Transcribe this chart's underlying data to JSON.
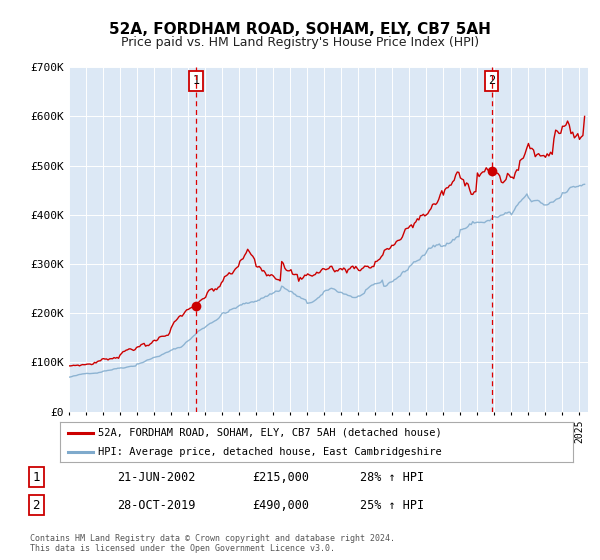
{
  "title": "52A, FORDHAM ROAD, SOHAM, ELY, CB7 5AH",
  "subtitle": "Price paid vs. HM Land Registry's House Price Index (HPI)",
  "bg_color": "#dce8f5",
  "outer_bg_color": "#ffffff",
  "hpi_color": "#7faacc",
  "price_color": "#cc0000",
  "ylim": [
    0,
    700000
  ],
  "yticks": [
    0,
    100000,
    200000,
    300000,
    400000,
    500000,
    600000,
    700000
  ],
  "ytick_labels": [
    "£0",
    "£100K",
    "£200K",
    "£300K",
    "£400K",
    "£500K",
    "£600K",
    "£700K"
  ],
  "xmin": 1995.0,
  "xmax": 2025.5,
  "sale1_x": 2002.47,
  "sale1_y": 215000,
  "sale1_label": "1",
  "sale2_x": 2019.83,
  "sale2_y": 490000,
  "sale2_label": "2",
  "legend_entry1": "52A, FORDHAM ROAD, SOHAM, ELY, CB7 5AH (detached house)",
  "legend_entry2": "HPI: Average price, detached house, East Cambridgeshire",
  "table_row1_num": "1",
  "table_row1_date": "21-JUN-2002",
  "table_row1_price": "£215,000",
  "table_row1_hpi": "28% ↑ HPI",
  "table_row2_num": "2",
  "table_row2_date": "28-OCT-2019",
  "table_row2_price": "£490,000",
  "table_row2_hpi": "25% ↑ HPI",
  "footer1": "Contains HM Land Registry data © Crown copyright and database right 2024.",
  "footer2": "This data is licensed under the Open Government Licence v3.0."
}
